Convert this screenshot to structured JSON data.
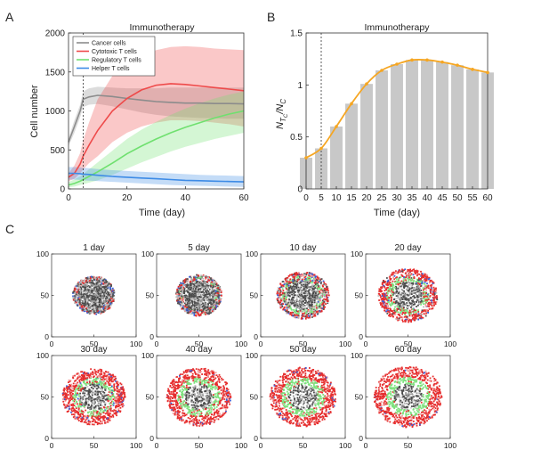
{
  "panel_labels": [
    "A",
    "B",
    "C"
  ],
  "colors": {
    "cancer": "#8c8c8c",
    "cytotoxic": "#ee4a4a",
    "regulatory": "#6fe06f",
    "helper": "#3d8be6",
    "bar": "#c8c8c8",
    "ratio_line": "#f5a623"
  },
  "chart_data": [
    {
      "type": "line",
      "panel": "A",
      "title": "Immunotherapy",
      "xlabel": "Time (day)",
      "ylabel": "Cell number",
      "xlim": [
        0,
        60
      ],
      "ylim": [
        0,
        2000
      ],
      "xticks": [
        0,
        20,
        40,
        60
      ],
      "yticks": [
        0,
        500,
        1000,
        1500,
        2000
      ],
      "legend_position": "top-left",
      "vline_x": 5,
      "x": [
        0,
        2,
        4,
        5,
        7,
        10,
        15,
        20,
        25,
        30,
        35,
        40,
        45,
        50,
        55,
        60
      ],
      "series": [
        {
          "name": "Cancer cells",
          "color_key": "cancer",
          "values": [
            600,
            800,
            1000,
            1150,
            1180,
            1200,
            1185,
            1160,
            1140,
            1120,
            1110,
            1100,
            1100,
            1095,
            1095,
            1090
          ],
          "lower": [
            550,
            720,
            920,
            1050,
            1080,
            1090,
            1060,
            1020,
            980,
            950,
            930,
            920,
            910,
            905,
            900,
            900
          ],
          "upper": [
            650,
            880,
            1080,
            1250,
            1290,
            1310,
            1300,
            1290,
            1290,
            1290,
            1300,
            1300,
            1300,
            1300,
            1300,
            1300
          ]
        },
        {
          "name": "Cytotoxic T cells",
          "color_key": "cytotoxic",
          "values": [
            150,
            200,
            320,
            420,
            560,
            750,
            1000,
            1160,
            1270,
            1330,
            1350,
            1340,
            1320,
            1300,
            1280,
            1260
          ],
          "lower": [
            100,
            130,
            200,
            250,
            330,
            420,
            600,
            720,
            800,
            850,
            880,
            880,
            870,
            850,
            830,
            800
          ],
          "upper": [
            200,
            300,
            460,
            620,
            850,
            1150,
            1450,
            1600,
            1700,
            1780,
            1820,
            1830,
            1820,
            1800,
            1790,
            1780
          ]
        },
        {
          "name": "Regulatory T cells",
          "color_key": "regulatory",
          "values": [
            50,
            70,
            100,
            120,
            160,
            220,
            330,
            450,
            550,
            640,
            720,
            790,
            850,
            910,
            960,
            1000
          ],
          "lower": [
            20,
            30,
            50,
            60,
            80,
            110,
            180,
            260,
            340,
            410,
            480,
            540,
            590,
            640,
            680,
            720
          ],
          "upper": [
            90,
            120,
            160,
            190,
            250,
            340,
            490,
            640,
            760,
            860,
            950,
            1030,
            1100,
            1160,
            1210,
            1250
          ]
        },
        {
          "name": "Helper T cells",
          "color_key": "helper",
          "values": [
            200,
            200,
            195,
            190,
            185,
            175,
            160,
            150,
            140,
            130,
            120,
            110,
            105,
            100,
            95,
            90
          ],
          "lower": [
            120,
            120,
            115,
            110,
            105,
            100,
            90,
            80,
            70,
            60,
            50,
            45,
            40,
            35,
            30,
            25
          ],
          "upper": [
            280,
            280,
            275,
            270,
            265,
            255,
            240,
            230,
            220,
            210,
            200,
            190,
            180,
            175,
            170,
            165
          ]
        }
      ]
    },
    {
      "type": "bar",
      "panel": "B",
      "title": "Immunotherapy",
      "xlabel": "Time (day)",
      "ylabel": "N_{T_C} / N_C",
      "ylabel_main": "N",
      "ylabel_sub1": "T",
      "ylabel_sub2": "C",
      "ylabel_slash": "/N",
      "ylabel_sub3": "C",
      "xlim": [
        0,
        60
      ],
      "ylim": [
        0,
        1.5
      ],
      "yticks": [
        0,
        0.5,
        1,
        1.5
      ],
      "vline_x": 5,
      "categories": [
        0,
        5,
        10,
        15,
        20,
        25,
        30,
        35,
        40,
        45,
        50,
        55,
        60
      ],
      "values": [
        0.3,
        0.39,
        0.6,
        0.82,
        1.01,
        1.14,
        1.2,
        1.24,
        1.24,
        1.22,
        1.19,
        1.15,
        1.12
      ],
      "line_values": [
        0.3,
        0.39,
        0.6,
        0.82,
        1.01,
        1.14,
        1.2,
        1.24,
        1.24,
        1.22,
        1.19,
        1.15,
        1.12
      ]
    },
    {
      "type": "scatter",
      "panel": "C",
      "xlim": [
        0,
        100
      ],
      "ylim": [
        0,
        100
      ],
      "ticks": [
        0,
        50,
        100
      ],
      "snapshots": [
        {
          "label": "1 day",
          "day": 1,
          "tumor_radius": 25,
          "core_radius": 18,
          "regulatory_level": 0.0,
          "cytotoxic_level": 0.15
        },
        {
          "label": "5 day",
          "day": 5,
          "tumor_radius": 27,
          "core_radius": 19,
          "regulatory_level": 0.1,
          "cytotoxic_level": 0.25
        },
        {
          "label": "10 day",
          "day": 10,
          "tumor_radius": 31,
          "core_radius": 19,
          "regulatory_level": 0.3,
          "cytotoxic_level": 0.45
        },
        {
          "label": "20 day",
          "day": 20,
          "tumor_radius": 35,
          "core_radius": 18,
          "regulatory_level": 0.5,
          "cytotoxic_level": 0.75
        },
        {
          "label": "30 day",
          "day": 30,
          "tumor_radius": 37,
          "core_radius": 17,
          "regulatory_level": 0.65,
          "cytotoxic_level": 0.85
        },
        {
          "label": "40 day",
          "day": 40,
          "tumor_radius": 38,
          "core_radius": 17,
          "regulatory_level": 0.75,
          "cytotoxic_level": 0.9
        },
        {
          "label": "50 day",
          "day": 50,
          "tumor_radius": 39,
          "core_radius": 17,
          "regulatory_level": 0.85,
          "cytotoxic_level": 0.92
        },
        {
          "label": "60 day",
          "day": 60,
          "tumor_radius": 40,
          "core_radius": 17,
          "regulatory_level": 0.9,
          "cytotoxic_level": 0.95
        }
      ]
    }
  ]
}
